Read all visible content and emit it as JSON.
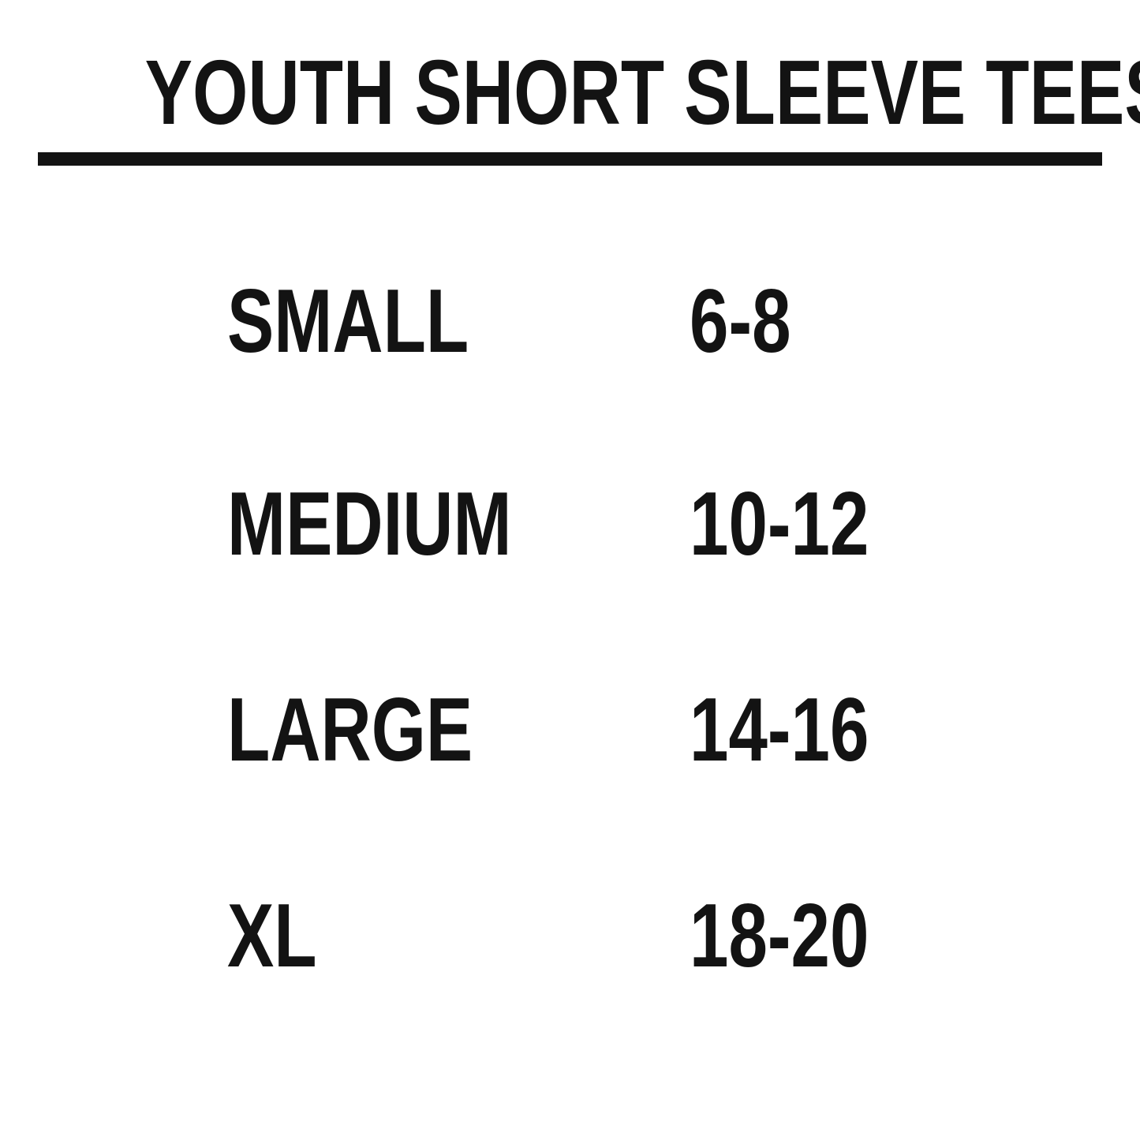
{
  "page": {
    "background": "#ffffff",
    "text_color": "#131313"
  },
  "header": {
    "title": "YOUTH SHORT SLEEVE TEES"
  },
  "size_table": {
    "columns": [
      "size",
      "age_range"
    ],
    "rows": [
      {
        "size": "SMALL",
        "range": "6-8"
      },
      {
        "size": "MEDIUM",
        "range": "10-12"
      },
      {
        "size": "LARGE",
        "range": "14-16"
      },
      {
        "size": "XL",
        "range": "18-20"
      }
    ]
  }
}
